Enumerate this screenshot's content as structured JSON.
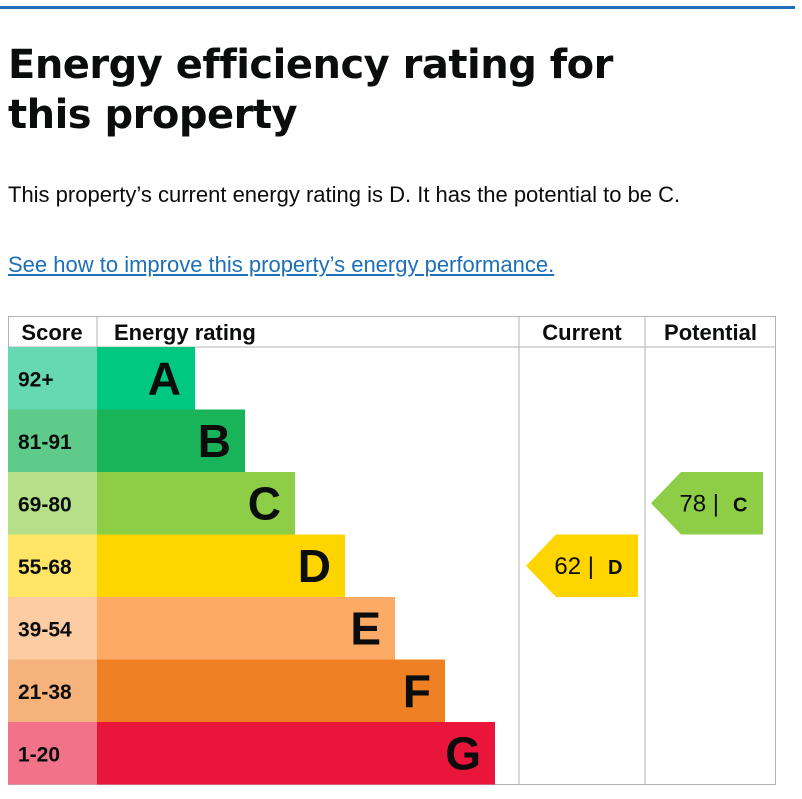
{
  "page": {
    "title": "Energy efficiency rating for this property",
    "summary": "This property’s current energy rating is D. It has the potential to be C.",
    "improve_link": "See how to improve this property’s energy performance."
  },
  "table": {
    "headers": {
      "score": "Score",
      "rating": "Energy rating",
      "current": "Current",
      "potential": "Potential"
    },
    "bands": [
      {
        "score": "92+",
        "letter": "A",
        "color": "#00c781",
        "score_bg": "#66d9b3"
      },
      {
        "score": "81-91",
        "letter": "B",
        "color": "#19b459",
        "score_bg": "#5ecb8b"
      },
      {
        "score": "69-80",
        "letter": "C",
        "color": "#8dce46",
        "score_bg": "#b5df89"
      },
      {
        "score": "55-68",
        "letter": "D",
        "color": "#ffd500",
        "score_bg": "#ffe566"
      },
      {
        "score": "39-54",
        "letter": "E",
        "color": "#fcaa65",
        "score_bg": "#fdcca3"
      },
      {
        "score": "21-38",
        "letter": "F",
        "color": "#ef8023",
        "score_bg": "#f5b37b"
      },
      {
        "score": "1-20",
        "letter": "G",
        "color": "#e9153b",
        "score_bg": "#f27389"
      }
    ],
    "current": {
      "value": "62 |",
      "letter": "D",
      "band": "D",
      "color": "#ffd500"
    },
    "potential": {
      "value": "78 |",
      "letter": "C",
      "band": "C",
      "color": "#8dce46"
    }
  }
}
